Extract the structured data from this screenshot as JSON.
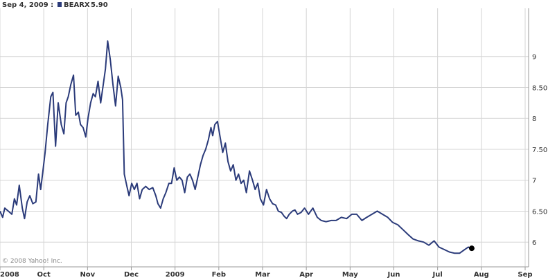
{
  "header": {
    "date_label": "Sep 4, 2009 :",
    "legend_ticker": "BEARX",
    "legend_value": "5.90"
  },
  "copyright": "© 2008 Yahoo! Inc.",
  "colors": {
    "series": "#2b3b7a",
    "grid": "#d4d4d4",
    "axis": "#9a9a9a"
  },
  "chart_data": {
    "type": "line",
    "ylim": [
      5.6,
      9.6
    ],
    "grid": true,
    "legend_placement": "top-left",
    "yticks": [
      {
        "value": 6,
        "label": "6"
      },
      {
        "value": 6.5,
        "label": "6.50"
      },
      {
        "value": 7,
        "label": "7"
      },
      {
        "value": 7.5,
        "label": "7.50"
      },
      {
        "value": 8,
        "label": "8"
      },
      {
        "value": 8.5,
        "label": "8.50"
      },
      {
        "value": 9,
        "label": "9"
      }
    ],
    "xticks": [
      {
        "month": 0,
        "label": "2008"
      },
      {
        "month": 1,
        "label": "Oct"
      },
      {
        "month": 2,
        "label": "Nov"
      },
      {
        "month": 3,
        "label": "Dec"
      },
      {
        "month": 4,
        "label": "2009"
      },
      {
        "month": 5,
        "label": "Feb"
      },
      {
        "month": 6,
        "label": "Mar"
      },
      {
        "month": 7,
        "label": "Apr"
      },
      {
        "month": 8,
        "label": "May"
      },
      {
        "month": 9,
        "label": "Jun"
      },
      {
        "month": 10,
        "label": "Jul"
      },
      {
        "month": 11,
        "label": "Aug"
      },
      {
        "month": 12,
        "label": "Sep"
      }
    ],
    "series": [
      {
        "name": "BEARX",
        "points": [
          [
            0.0,
            6.5
          ],
          [
            0.06,
            6.4
          ],
          [
            0.11,
            6.55
          ],
          [
            0.19,
            6.5
          ],
          [
            0.27,
            6.45
          ],
          [
            0.33,
            6.7
          ],
          [
            0.38,
            6.6
          ],
          [
            0.44,
            6.92
          ],
          [
            0.51,
            6.55
          ],
          [
            0.56,
            6.38
          ],
          [
            0.62,
            6.65
          ],
          [
            0.68,
            6.75
          ],
          [
            0.75,
            6.62
          ],
          [
            0.82,
            6.65
          ],
          [
            0.88,
            7.1
          ],
          [
            0.93,
            6.85
          ],
          [
            0.99,
            7.2
          ],
          [
            1.03,
            7.45
          ],
          [
            1.09,
            7.9
          ],
          [
            1.16,
            8.35
          ],
          [
            1.21,
            8.42
          ],
          [
            1.27,
            7.55
          ],
          [
            1.33,
            8.25
          ],
          [
            1.4,
            7.9
          ],
          [
            1.46,
            7.75
          ],
          [
            1.51,
            8.25
          ],
          [
            1.56,
            8.35
          ],
          [
            1.62,
            8.55
          ],
          [
            1.68,
            8.7
          ],
          [
            1.73,
            8.05
          ],
          [
            1.79,
            8.1
          ],
          [
            1.84,
            7.9
          ],
          [
            1.9,
            7.85
          ],
          [
            1.96,
            7.7
          ],
          [
            2.01,
            8.0
          ],
          [
            2.07,
            8.25
          ],
          [
            2.13,
            8.4
          ],
          [
            2.18,
            8.35
          ],
          [
            2.24,
            8.6
          ],
          [
            2.3,
            8.25
          ],
          [
            2.36,
            8.55
          ],
          [
            2.41,
            8.8
          ],
          [
            2.46,
            9.25
          ],
          [
            2.52,
            8.95
          ],
          [
            2.58,
            8.55
          ],
          [
            2.64,
            8.2
          ],
          [
            2.7,
            8.68
          ],
          [
            2.76,
            8.5
          ],
          [
            2.8,
            8.3
          ],
          [
            2.84,
            7.1
          ],
          [
            2.9,
            6.9
          ],
          [
            2.95,
            6.75
          ],
          [
            3.01,
            6.95
          ],
          [
            3.07,
            6.85
          ],
          [
            3.13,
            6.95
          ],
          [
            3.19,
            6.7
          ],
          [
            3.25,
            6.85
          ],
          [
            3.33,
            6.9
          ],
          [
            3.41,
            6.85
          ],
          [
            3.49,
            6.88
          ],
          [
            3.56,
            6.75
          ],
          [
            3.61,
            6.62
          ],
          [
            3.67,
            6.55
          ],
          [
            3.73,
            6.7
          ],
          [
            3.79,
            6.8
          ],
          [
            3.86,
            6.95
          ],
          [
            3.92,
            6.95
          ],
          [
            3.98,
            7.2
          ],
          [
            4.04,
            7.0
          ],
          [
            4.1,
            7.05
          ],
          [
            4.16,
            7.0
          ],
          [
            4.22,
            6.8
          ],
          [
            4.28,
            7.05
          ],
          [
            4.34,
            7.1
          ],
          [
            4.4,
            7.0
          ],
          [
            4.46,
            6.85
          ],
          [
            4.52,
            7.05
          ],
          [
            4.58,
            7.25
          ],
          [
            4.64,
            7.4
          ],
          [
            4.7,
            7.5
          ],
          [
            4.76,
            7.65
          ],
          [
            4.82,
            7.85
          ],
          [
            4.86,
            7.72
          ],
          [
            4.91,
            7.9
          ],
          [
            4.97,
            7.95
          ],
          [
            5.03,
            7.7
          ],
          [
            5.09,
            7.45
          ],
          [
            5.15,
            7.6
          ],
          [
            5.21,
            7.3
          ],
          [
            5.27,
            7.15
          ],
          [
            5.33,
            7.25
          ],
          [
            5.39,
            7.0
          ],
          [
            5.45,
            7.1
          ],
          [
            5.51,
            6.95
          ],
          [
            5.57,
            7.0
          ],
          [
            5.63,
            6.8
          ],
          [
            5.7,
            7.15
          ],
          [
            5.77,
            7.0
          ],
          [
            5.83,
            6.85
          ],
          [
            5.89,
            6.95
          ],
          [
            5.95,
            6.7
          ],
          [
            6.02,
            6.6
          ],
          [
            6.09,
            6.85
          ],
          [
            6.16,
            6.7
          ],
          [
            6.23,
            6.62
          ],
          [
            6.3,
            6.6
          ],
          [
            6.36,
            6.5
          ],
          [
            6.43,
            6.48
          ],
          [
            6.49,
            6.42
          ],
          [
            6.55,
            6.38
          ],
          [
            6.61,
            6.45
          ],
          [
            6.68,
            6.5
          ],
          [
            6.74,
            6.52
          ],
          [
            6.8,
            6.45
          ],
          [
            6.88,
            6.48
          ],
          [
            6.96,
            6.55
          ],
          [
            7.05,
            6.45
          ],
          [
            7.15,
            6.55
          ],
          [
            7.25,
            6.4
          ],
          [
            7.34,
            6.35
          ],
          [
            7.45,
            6.33
          ],
          [
            7.57,
            6.35
          ],
          [
            7.68,
            6.35
          ],
          [
            7.8,
            6.4
          ],
          [
            7.92,
            6.38
          ],
          [
            8.04,
            6.45
          ],
          [
            8.15,
            6.45
          ],
          [
            8.27,
            6.35
          ],
          [
            8.38,
            6.4
          ],
          [
            8.5,
            6.45
          ],
          [
            8.62,
            6.5
          ],
          [
            8.74,
            6.45
          ],
          [
            8.86,
            6.4
          ],
          [
            8.97,
            6.32
          ],
          [
            9.09,
            6.28
          ],
          [
            9.21,
            6.2
          ],
          [
            9.33,
            6.12
          ],
          [
            9.44,
            6.05
          ],
          [
            9.56,
            6.02
          ],
          [
            9.68,
            6.0
          ],
          [
            9.8,
            5.95
          ],
          [
            9.92,
            6.02
          ],
          [
            10.03,
            5.92
          ],
          [
            10.15,
            5.88
          ],
          [
            10.27,
            5.84
          ],
          [
            10.39,
            5.82
          ],
          [
            10.5,
            5.82
          ],
          [
            10.62,
            5.88
          ],
          [
            10.7,
            5.92
          ],
          [
            10.78,
            5.9
          ]
        ]
      }
    ]
  }
}
